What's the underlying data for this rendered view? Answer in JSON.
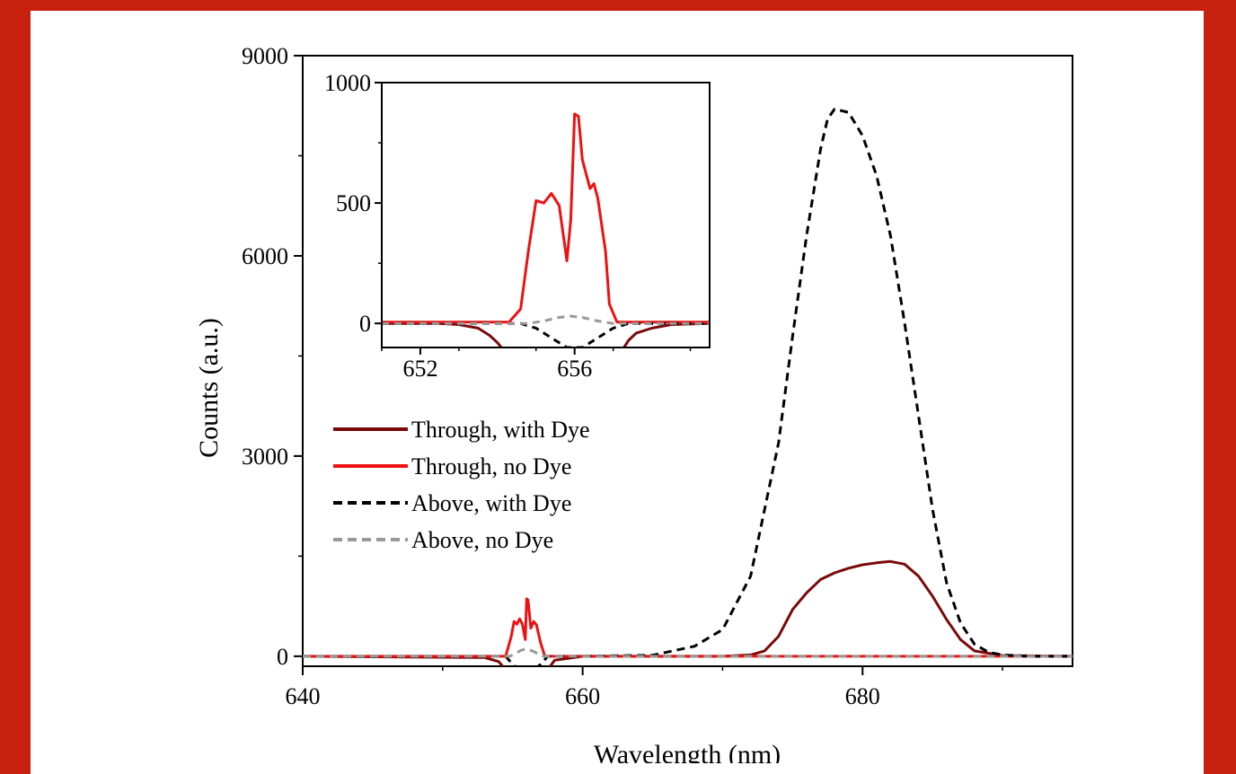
{
  "chart_data": {
    "main": {
      "type": "line",
      "xlabel": "Wavelength (nm)",
      "ylabel": "Counts (a.u.)",
      "xlim": [
        640,
        695
      ],
      "ylim": [
        -150,
        9000
      ],
      "x_ticks": [
        640,
        660,
        680
      ],
      "y_ticks": [
        0,
        3000,
        6000,
        9000
      ],
      "legend_position": "center-left",
      "series": [
        {
          "name": "Through, with Dye",
          "color": "#7a0a0a",
          "style": "solid",
          "x": [
            640,
            653,
            654,
            654.5,
            655,
            657,
            657.5,
            658,
            660,
            670,
            672,
            673,
            674,
            675,
            676,
            677,
            678,
            679,
            680,
            681,
            682,
            683,
            684,
            685,
            686,
            687,
            688,
            690,
            695
          ],
          "y": [
            0,
            -20,
            -80,
            -200,
            -300,
            -300,
            -200,
            -60,
            0,
            0,
            20,
            80,
            300,
            700,
            950,
            1150,
            1250,
            1320,
            1370,
            1400,
            1420,
            1380,
            1200,
            900,
            550,
            250,
            80,
            10,
            0
          ]
        },
        {
          "name": "Through, no Dye",
          "color": "#ee1111",
          "style": "solid",
          "x": [
            640,
            654.5,
            654.9,
            655.1,
            655.3,
            655.5,
            655.7,
            655.9,
            656.0,
            656.1,
            656.3,
            656.5,
            656.7,
            657.0,
            657.3,
            695
          ],
          "y": [
            0,
            0,
            300,
            520,
            480,
            560,
            480,
            250,
            860,
            840,
            420,
            520,
            470,
            200,
            0,
            0
          ]
        },
        {
          "name": "Above, with Dye",
          "color": "#000000",
          "style": "dashed",
          "x": [
            640,
            654.5,
            655,
            656,
            657,
            657.5,
            660,
            665,
            668,
            670,
            672,
            674,
            675,
            676,
            677,
            677.5,
            678,
            679,
            680,
            681,
            682,
            683,
            684,
            685,
            686,
            687,
            688,
            689,
            690,
            692,
            695
          ],
          "y": [
            0,
            0,
            -120,
            -300,
            -120,
            0,
            0,
            15,
            150,
            400,
            1200,
            3200,
            4800,
            6300,
            7600,
            8050,
            8200,
            8150,
            7800,
            7200,
            6300,
            5000,
            3600,
            2200,
            1100,
            500,
            180,
            60,
            20,
            0,
            0
          ]
        },
        {
          "name": "Above, no Dye",
          "color": "#999999",
          "style": "dashed",
          "x": [
            640,
            654.8,
            655.2,
            655.6,
            656.0,
            656.4,
            656.8,
            657.2,
            695
          ],
          "y": [
            0,
            0,
            40,
            90,
            110,
            80,
            40,
            0,
            0
          ]
        }
      ]
    },
    "inset": {
      "type": "line",
      "xlim": [
        651,
        659.5
      ],
      "ylim": [
        -100,
        1000
      ],
      "x_ticks": [
        652,
        656
      ],
      "y_ticks": [
        0,
        500,
        1000
      ],
      "series": [
        {
          "name": "Through, with Dye",
          "color": "#7a0a0a",
          "style": "solid",
          "x": [
            651,
            652.5,
            653,
            653.5,
            653.8,
            654.0,
            654.2
          ],
          "y": [
            0,
            0,
            -5,
            -20,
            -50,
            -80,
            -120
          ]
        },
        {
          "name": "Through, with Dye (b)",
          "color": "#7a0a0a",
          "style": "solid",
          "x": [
            657.2,
            657.4,
            657.6,
            658,
            658.5,
            659.5
          ],
          "y": [
            -120,
            -70,
            -40,
            -20,
            -5,
            0
          ]
        },
        {
          "name": "Through, no Dye",
          "color": "#ee1111",
          "style": "solid",
          "x": [
            651,
            654.3,
            654.6,
            654.8,
            655.0,
            655.2,
            655.4,
            655.6,
            655.8,
            655.9,
            656.0,
            656.1,
            656.2,
            656.4,
            656.5,
            656.6,
            656.8,
            656.9,
            657.1,
            659.5
          ],
          "y": [
            5,
            5,
            60,
            300,
            510,
            500,
            540,
            490,
            260,
            430,
            870,
            860,
            680,
            560,
            580,
            520,
            300,
            80,
            5,
            5
          ]
        },
        {
          "name": "Above, with Dye",
          "color": "#000000",
          "style": "dashed",
          "x": [
            651,
            654.6,
            655.0,
            655.4,
            655.8,
            656.2,
            656.6,
            657.0,
            657.4,
            659.5
          ],
          "y": [
            0,
            0,
            -20,
            -60,
            -100,
            -100,
            -60,
            -20,
            0,
            0
          ]
        },
        {
          "name": "Above, no Dye",
          "color": "#999999",
          "style": "dashed",
          "x": [
            651,
            654.8,
            655.2,
            655.6,
            655.9,
            656.2,
            656.6,
            657.0,
            659.5
          ],
          "y": [
            0,
            0,
            10,
            25,
            30,
            25,
            10,
            0,
            0
          ]
        }
      ]
    }
  }
}
